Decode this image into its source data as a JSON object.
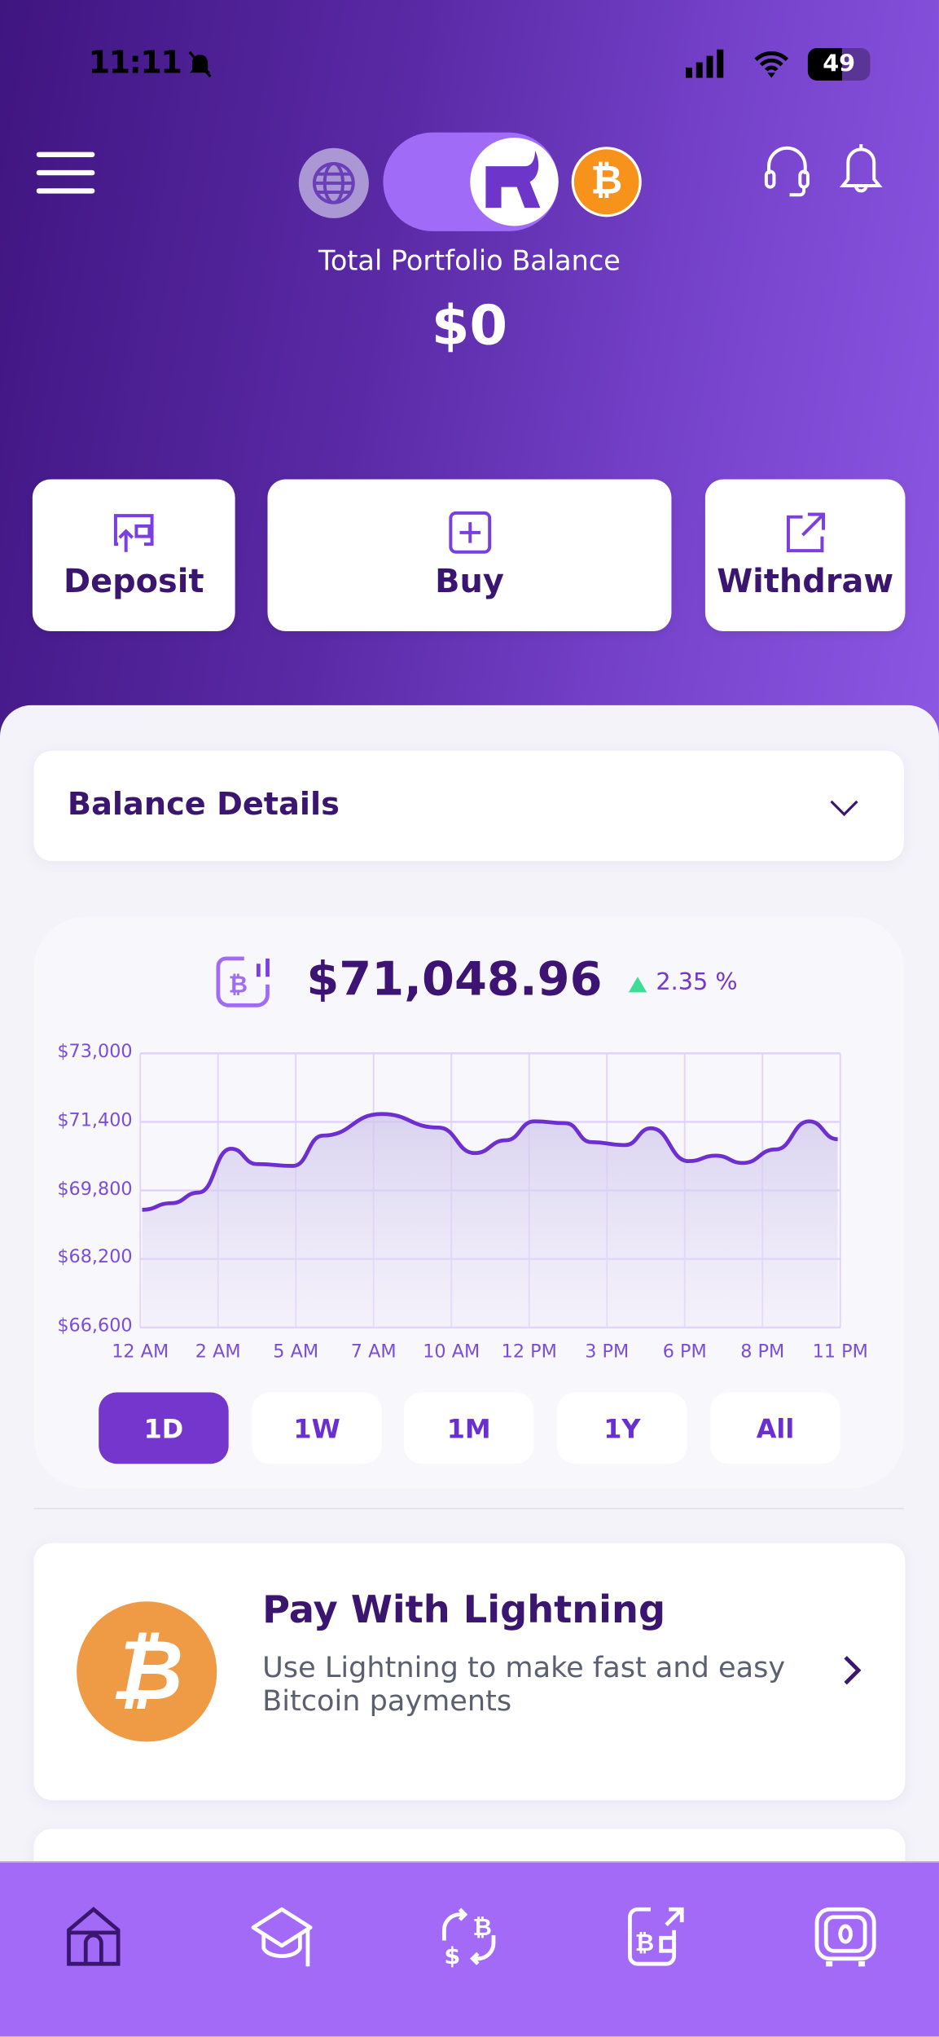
{
  "status_bar": {
    "time": "11:11",
    "battery": "49"
  },
  "header": {
    "title": "Total Portfolio Balance",
    "balance": "$0"
  },
  "actions": [
    {
      "label": "Deposit",
      "icon": "deposit-icon"
    },
    {
      "label": "Buy",
      "icon": "plus-square-icon"
    },
    {
      "label": "Withdraw",
      "icon": "external-link-icon"
    }
  ],
  "balance_details": {
    "label": "Balance Details"
  },
  "price": {
    "value": "$71,048.96",
    "change": "2.35 %",
    "direction": "up"
  },
  "ranges": [
    {
      "label": "1D",
      "active": true
    },
    {
      "label": "1W",
      "active": false
    },
    {
      "label": "1M",
      "active": false
    },
    {
      "label": "1Y",
      "active": false
    },
    {
      "label": "All",
      "active": false
    }
  ],
  "chart_data": {
    "type": "area",
    "xlabel": "",
    "ylabel": "",
    "x_ticks": [
      "12 AM",
      "2 AM",
      "5 AM",
      "7 AM",
      "10 AM",
      "12 PM",
      "3 PM",
      "6 PM",
      "8 PM",
      "11 PM"
    ],
    "x_tick_hours": [
      0,
      2,
      5,
      7,
      10,
      12,
      15,
      18,
      20,
      23
    ],
    "y_ticks": [
      "$73,000",
      "$71,400",
      "$69,800",
      "$68,200",
      "$66,600"
    ],
    "ylim": [
      66600,
      73000
    ],
    "grid": true,
    "series": [
      {
        "x_hours": [
          0.05,
          0.8,
          1.5,
          2.5,
          3.5,
          4.9,
          5.7,
          7.3,
          9.5,
          10.6,
          11.4,
          12.2,
          13.4,
          14.4,
          15.7,
          16.7,
          18.1,
          18.8,
          19.5,
          20.5,
          21.8,
          22.9
        ],
        "values": [
          69348,
          69502,
          69750,
          70773,
          70415,
          70372,
          71080,
          71584,
          71268,
          70671,
          70970,
          71413,
          71370,
          70927,
          70858,
          71251,
          70483,
          70611,
          70440,
          70756,
          71413,
          70995
        ]
      }
    ]
  },
  "promo": {
    "title": "Pay With Lightning",
    "description": "Use Lightning to make fast and easy Bitcoin payments"
  },
  "nav": [
    {
      "icon": "home-icon",
      "active": true
    },
    {
      "icon": "graduation-cap-icon"
    },
    {
      "icon": "exchange-btc-usd-icon"
    },
    {
      "icon": "send-btc-icon"
    },
    {
      "icon": "vault-icon"
    }
  ],
  "colors": {
    "primary": "#7436cc",
    "nav": "#a36af8",
    "bitcoin": "#f7931a",
    "up": "#3ddc97",
    "text_dark": "#3a1670"
  }
}
